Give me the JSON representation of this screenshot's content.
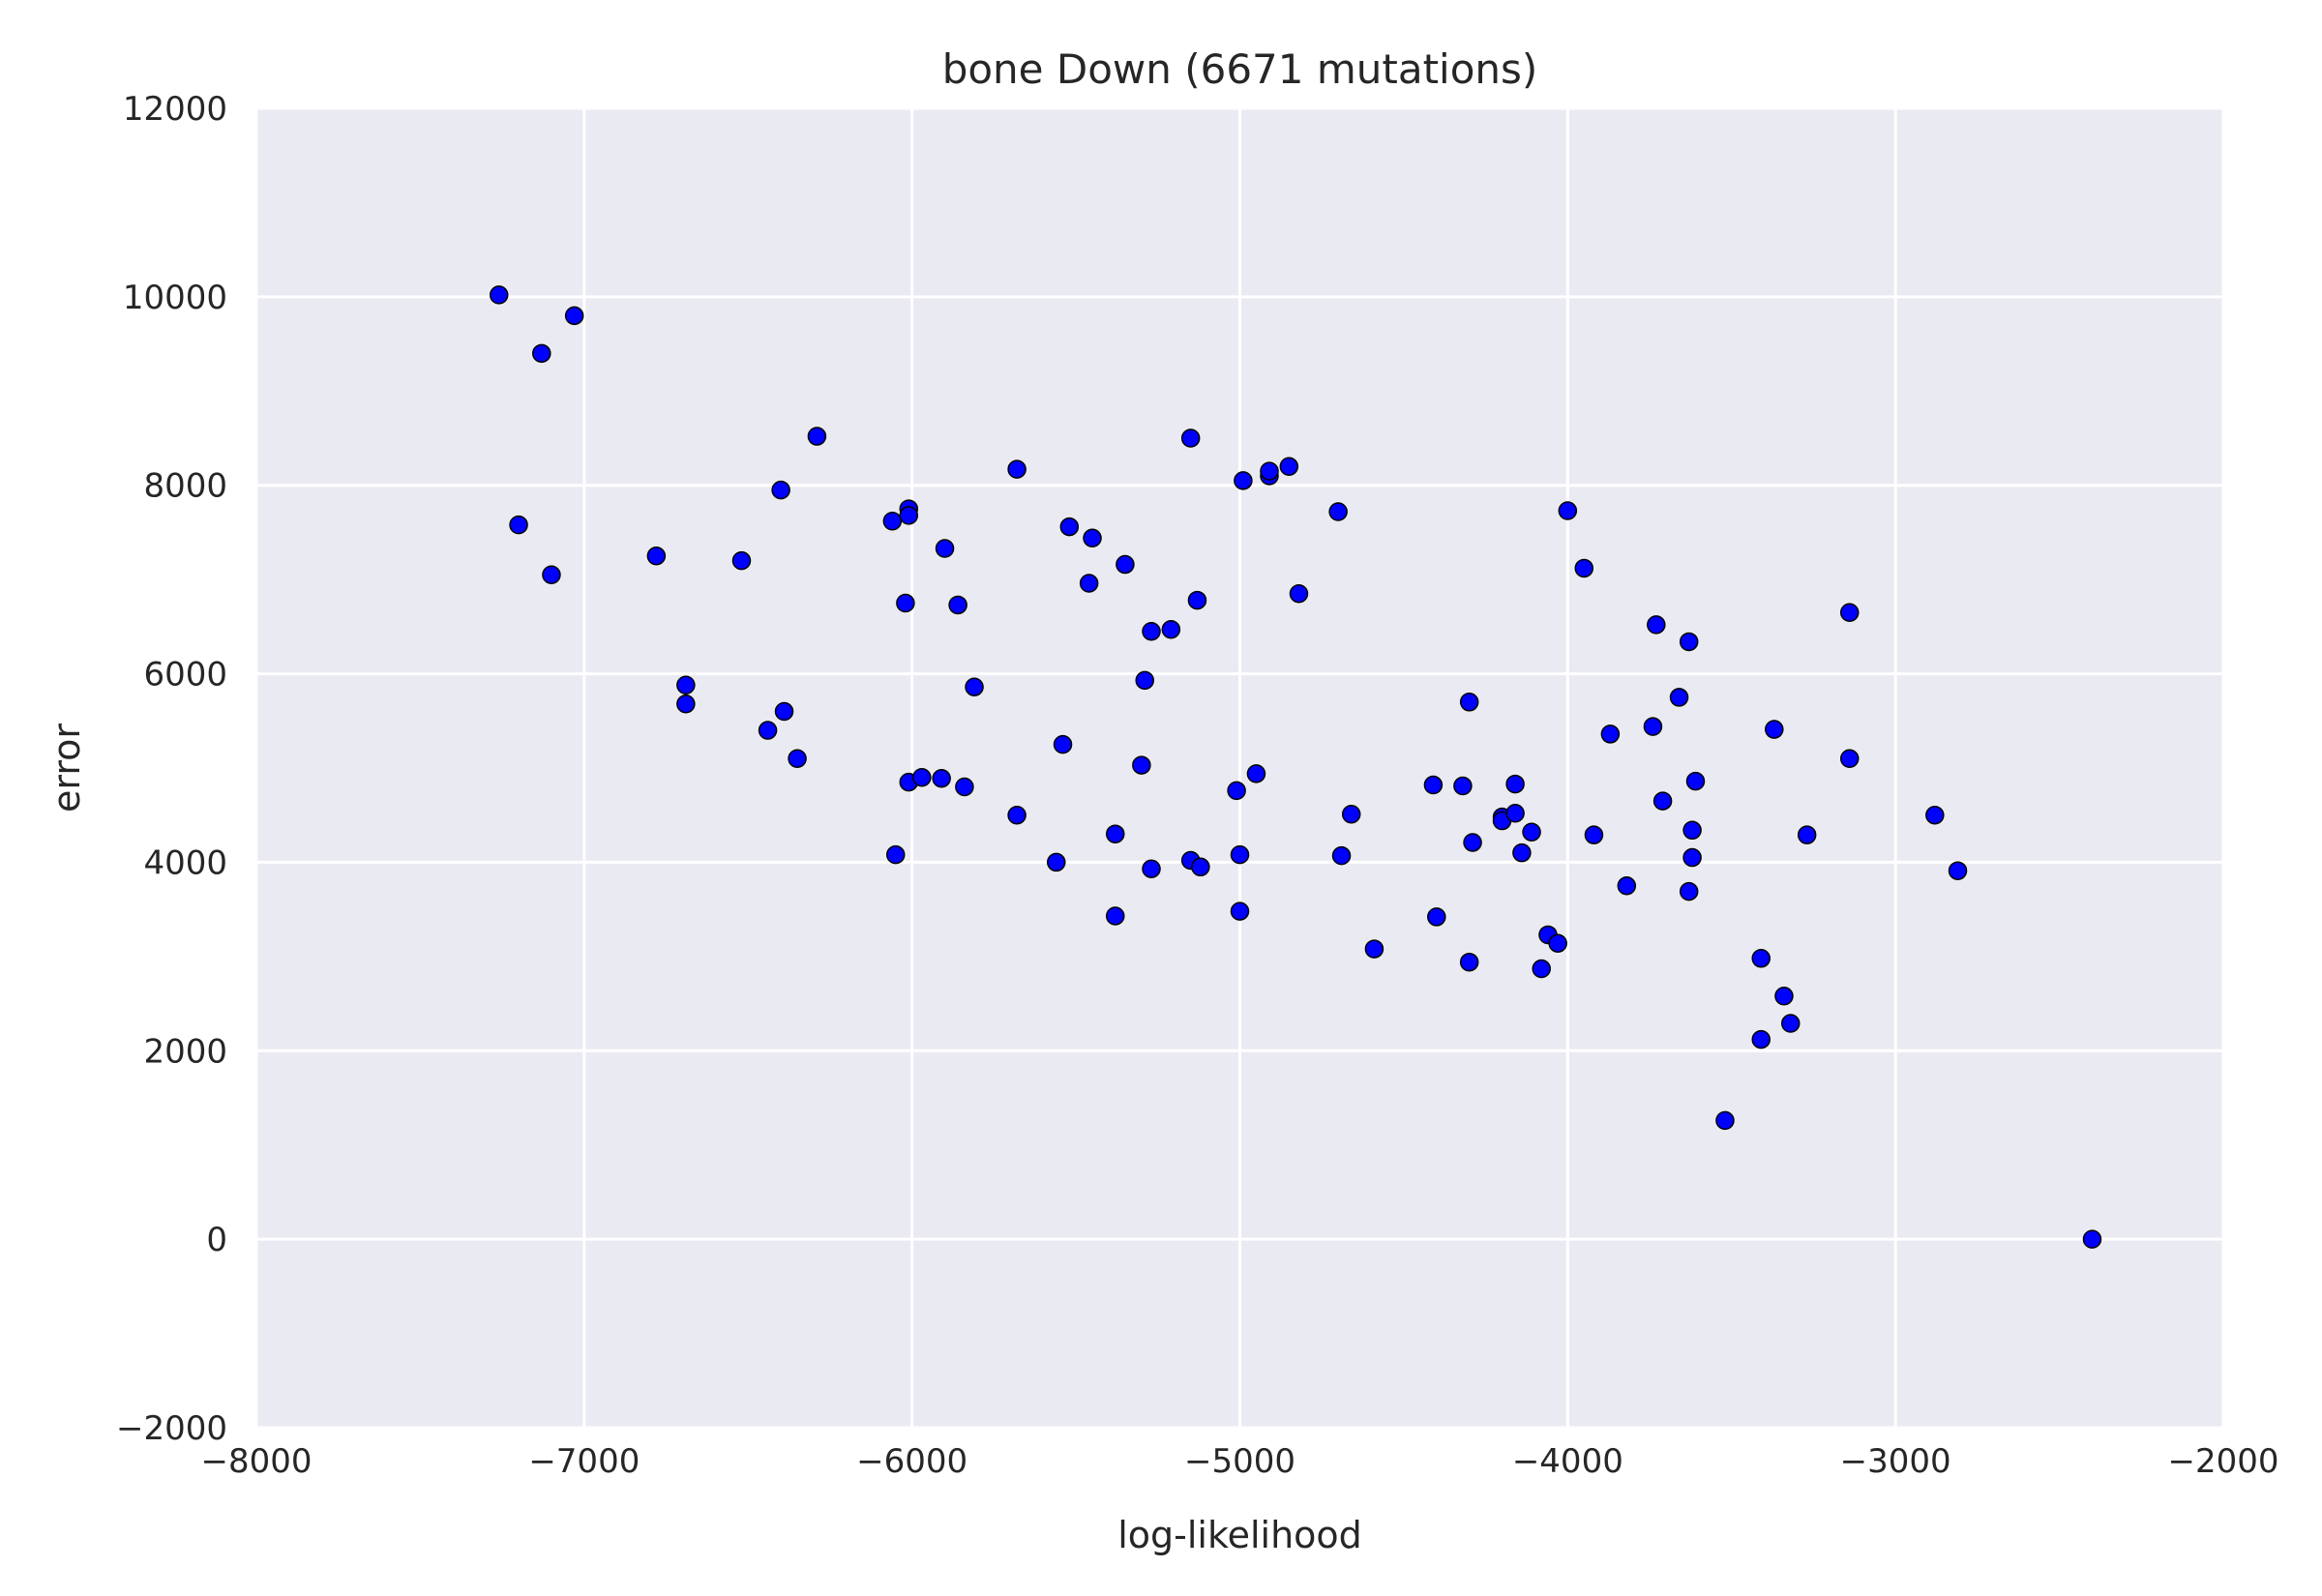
{
  "chart_data": {
    "type": "scatter",
    "title": "bone Down (6671 mutations)",
    "xlabel": "log-likelihood",
    "ylabel": "error",
    "xlim": [
      -8000,
      -2000
    ],
    "ylim": [
      -2000,
      12000
    ],
    "xticks": [
      -8000,
      -7000,
      -6000,
      -5000,
      -4000,
      -3000,
      -2000
    ],
    "yticks": [
      -2000,
      0,
      2000,
      4000,
      6000,
      8000,
      10000,
      12000
    ],
    "xtick_labels": [
      "−8000",
      "−7000",
      "−6000",
      "−5000",
      "−4000",
      "−3000",
      "−2000"
    ],
    "ytick_labels": [
      "−2000",
      "0",
      "2000",
      "4000",
      "6000",
      "8000",
      "10000",
      "12000"
    ],
    "grid": true,
    "colors": {
      "background": "#EAEAF2",
      "grid": "#FFFFFF",
      "point_fill": "#0000FF",
      "point_edge": "#000000"
    },
    "points": [
      [
        -7260,
        10020
      ],
      [
        -7130,
        9400
      ],
      [
        -7030,
        9800
      ],
      [
        -7200,
        7580
      ],
      [
        -7100,
        7050
      ],
      [
        -6780,
        7250
      ],
      [
        -6520,
        7200
      ],
      [
        -6690,
        5880
      ],
      [
        -6690,
        5680
      ],
      [
        -6440,
        5400
      ],
      [
        -6390,
        5600
      ],
      [
        -6350,
        5100
      ],
      [
        -6400,
        7950
      ],
      [
        -6290,
        8520
      ],
      [
        -6060,
        7620
      ],
      [
        -6010,
        7750
      ],
      [
        -6010,
        7680
      ],
      [
        -6020,
        6750
      ],
      [
        -6050,
        4080
      ],
      [
        -6010,
        4850
      ],
      [
        -5970,
        4900
      ],
      [
        -5910,
        4890
      ],
      [
        -5900,
        7330
      ],
      [
        -5860,
        6730
      ],
      [
        -5840,
        4800
      ],
      [
        -5810,
        5860
      ],
      [
        -5680,
        8170
      ],
      [
        -5680,
        4500
      ],
      [
        -5560,
        4000
      ],
      [
        -5540,
        5250
      ],
      [
        -5520,
        7560
      ],
      [
        -5460,
        6960
      ],
      [
        -5450,
        7440
      ],
      [
        -5380,
        4300
      ],
      [
        -5380,
        3430
      ],
      [
        -5350,
        7160
      ],
      [
        -5300,
        5030
      ],
      [
        -5290,
        5930
      ],
      [
        -5270,
        6450
      ],
      [
        -5270,
        3930
      ],
      [
        -5210,
        6470
      ],
      [
        -5150,
        8500
      ],
      [
        -5150,
        4020
      ],
      [
        -5130,
        6780
      ],
      [
        -5120,
        3950
      ],
      [
        -5010,
        4760
      ],
      [
        -5000,
        4080
      ],
      [
        -5000,
        3480
      ],
      [
        -4990,
        8050
      ],
      [
        -4950,
        4940
      ],
      [
        -4910,
        8100
      ],
      [
        -4910,
        8150
      ],
      [
        -4850,
        8200
      ],
      [
        -4820,
        6850
      ],
      [
        -4700,
        7720
      ],
      [
        -4690,
        4070
      ],
      [
        -4660,
        4510
      ],
      [
        -4590,
        3080
      ],
      [
        -4410,
        4820
      ],
      [
        -4400,
        3420
      ],
      [
        -4320,
        4810
      ],
      [
        -4300,
        5700
      ],
      [
        -4300,
        2940
      ],
      [
        -4290,
        4210
      ],
      [
        -4200,
        4480
      ],
      [
        -4200,
        4440
      ],
      [
        -4160,
        4830
      ],
      [
        -4160,
        4520
      ],
      [
        -4140,
        4100
      ],
      [
        -4110,
        4320
      ],
      [
        -4080,
        2870
      ],
      [
        -4060,
        3230
      ],
      [
        -4030,
        3140
      ],
      [
        -4000,
        7730
      ],
      [
        -3950,
        7120
      ],
      [
        -3920,
        4290
      ],
      [
        -3870,
        5360
      ],
      [
        -3820,
        3750
      ],
      [
        -3740,
        5440
      ],
      [
        -3730,
        6520
      ],
      [
        -3710,
        4650
      ],
      [
        -3660,
        5750
      ],
      [
        -3630,
        6340
      ],
      [
        -3630,
        3690
      ],
      [
        -3620,
        4050
      ],
      [
        -3620,
        4340
      ],
      [
        -3610,
        4860
      ],
      [
        -3520,
        1260
      ],
      [
        -3410,
        2980
      ],
      [
        -3410,
        2120
      ],
      [
        -3370,
        5410
      ],
      [
        -3340,
        2580
      ],
      [
        -3320,
        2290
      ],
      [
        -3270,
        4290
      ],
      [
        -3140,
        6650
      ],
      [
        -3140,
        5100
      ],
      [
        -2880,
        4500
      ],
      [
        -2810,
        3910
      ],
      [
        -2400,
        0
      ]
    ]
  }
}
